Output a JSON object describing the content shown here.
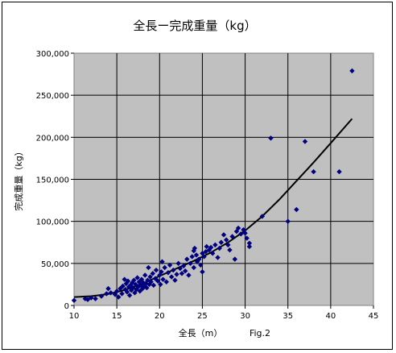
{
  "chart_data": {
    "type": "scatter",
    "title": "全長ー完成重量（kg）",
    "xlabel": "全長（m）",
    "ylabel": "完成重量（kg）",
    "annotation": "Fig.2",
    "xlim": [
      10,
      45
    ],
    "ylim": [
      0,
      300000
    ],
    "x_ticks": [
      10,
      15,
      20,
      25,
      30,
      35,
      40,
      45
    ],
    "x_tick_labels": [
      "10",
      "15",
      "20",
      "25",
      "30",
      "35",
      "40",
      "45"
    ],
    "y_ticks": [
      0,
      50000,
      100000,
      150000,
      200000,
      250000,
      300000
    ],
    "y_tick_labels": [
      "0",
      "50,000",
      "100,000",
      "150,000",
      "200,000",
      "250,000",
      "300,000"
    ],
    "grid": true,
    "plot_background": "#c0c0c0",
    "marker_color": "#000080",
    "trend_color": "#000000",
    "points": [
      [
        10.0,
        6000
      ],
      [
        11.3,
        8000
      ],
      [
        11.6,
        7000
      ],
      [
        12.0,
        9000
      ],
      [
        12.5,
        8000
      ],
      [
        13.2,
        11000
      ],
      [
        13.8,
        14000
      ],
      [
        14.0,
        20000
      ],
      [
        14.3,
        15000
      ],
      [
        14.8,
        13000
      ],
      [
        15.0,
        17000
      ],
      [
        15.2,
        10000
      ],
      [
        15.4,
        20000
      ],
      [
        15.6,
        14000
      ],
      [
        15.7,
        23000
      ],
      [
        15.9,
        31000
      ],
      [
        16.0,
        19000
      ],
      [
        16.1,
        26000
      ],
      [
        16.2,
        16000
      ],
      [
        16.3,
        29000
      ],
      [
        16.4,
        22000
      ],
      [
        16.5,
        12000
      ],
      [
        16.6,
        24000
      ],
      [
        16.7,
        18000
      ],
      [
        16.8,
        27000
      ],
      [
        16.9,
        21000
      ],
      [
        17.0,
        30000
      ],
      [
        17.1,
        15000
      ],
      [
        17.2,
        25000
      ],
      [
        17.3,
        19000
      ],
      [
        17.4,
        33000
      ],
      [
        17.5,
        22000
      ],
      [
        17.6,
        28000
      ],
      [
        17.7,
        17000
      ],
      [
        17.8,
        24000
      ],
      [
        17.9,
        31000
      ],
      [
        18.0,
        20000
      ],
      [
        18.1,
        27000
      ],
      [
        18.2,
        23000
      ],
      [
        18.3,
        36000
      ],
      [
        18.4,
        26000
      ],
      [
        18.5,
        21000
      ],
      [
        18.6,
        30000
      ],
      [
        18.7,
        45000
      ],
      [
        18.8,
        25000
      ],
      [
        18.9,
        34000
      ],
      [
        19.0,
        28000
      ],
      [
        19.2,
        38000
      ],
      [
        19.3,
        24000
      ],
      [
        19.5,
        32000
      ],
      [
        19.6,
        42000
      ],
      [
        19.8,
        29000
      ],
      [
        20.0,
        36000
      ],
      [
        20.1,
        25000
      ],
      [
        20.2,
        40000
      ],
      [
        20.3,
        52000
      ],
      [
        20.4,
        31000
      ],
      [
        20.6,
        45000
      ],
      [
        20.8,
        28000
      ],
      [
        21.0,
        39000
      ],
      [
        21.2,
        48000
      ],
      [
        21.4,
        34000
      ],
      [
        21.6,
        42000
      ],
      [
        21.8,
        30000
      ],
      [
        22.0,
        37000
      ],
      [
        22.2,
        50000
      ],
      [
        22.4,
        44000
      ],
      [
        22.6,
        38000
      ],
      [
        22.8,
        47000
      ],
      [
        23.0,
        41000
      ],
      [
        23.2,
        55000
      ],
      [
        23.4,
        36000
      ],
      [
        23.6,
        50000
      ],
      [
        23.8,
        58000
      ],
      [
        24.0,
        45000
      ],
      [
        24.0,
        65000
      ],
      [
        24.1,
        68000
      ],
      [
        24.3,
        60000
      ],
      [
        24.4,
        52000
      ],
      [
        24.6,
        55000
      ],
      [
        24.8,
        48000
      ],
      [
        25.0,
        62000
      ],
      [
        25.0,
        40000
      ],
      [
        25.2,
        58000
      ],
      [
        25.4,
        64000
      ],
      [
        25.5,
        70000
      ],
      [
        25.8,
        66000
      ],
      [
        26.0,
        69000
      ],
      [
        26.2,
        62000
      ],
      [
        26.5,
        72000
      ],
      [
        26.8,
        57000
      ],
      [
        27.0,
        68000
      ],
      [
        27.2,
        75000
      ],
      [
        27.5,
        84000
      ],
      [
        27.8,
        78000
      ],
      [
        28.0,
        72000
      ],
      [
        28.2,
        66000
      ],
      [
        28.5,
        82000
      ],
      [
        28.8,
        55000
      ],
      [
        29.0,
        88000
      ],
      [
        29.2,
        92000
      ],
      [
        29.5,
        85000
      ],
      [
        29.8,
        90000
      ],
      [
        30.0,
        86000
      ],
      [
        30.2,
        80000
      ],
      [
        30.5,
        74000
      ],
      [
        30.5,
        70000
      ],
      [
        32.0,
        106000
      ],
      [
        33.0,
        199000
      ],
      [
        35.0,
        100000
      ],
      [
        36.0,
        114000
      ],
      [
        37.0,
        195000
      ],
      [
        38.0,
        159000
      ],
      [
        41.0,
        159000
      ],
      [
        42.5,
        279000
      ]
    ],
    "trend": [
      [
        10,
        10000
      ],
      [
        12,
        11000
      ],
      [
        14,
        13500
      ],
      [
        16,
        18500
      ],
      [
        18,
        26000
      ],
      [
        20,
        35000
      ],
      [
        22,
        44000
      ],
      [
        24,
        53000
      ],
      [
        26,
        63000
      ],
      [
        28,
        75000
      ],
      [
        30,
        89000
      ],
      [
        32,
        106000
      ],
      [
        34,
        126000
      ],
      [
        36,
        148000
      ],
      [
        38,
        170000
      ],
      [
        40,
        193000
      ],
      [
        42.5,
        222000
      ]
    ]
  }
}
